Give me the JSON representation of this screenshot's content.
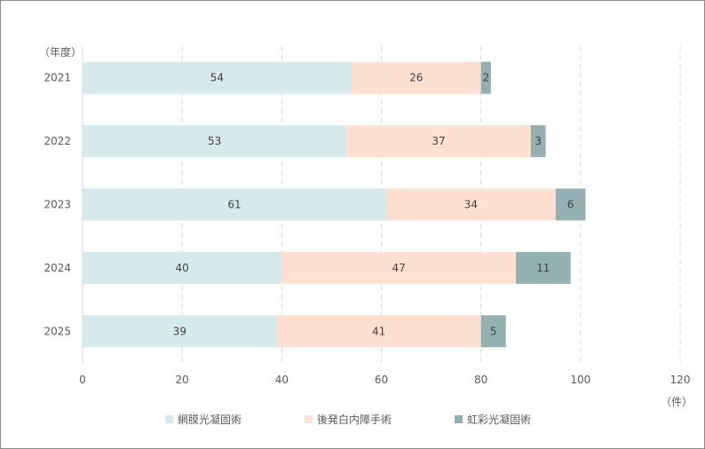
{
  "chart_data": {
    "type": "bar",
    "orientation": "horizontal",
    "stacked": true,
    "categories": [
      "2021",
      "2022",
      "2023",
      "2024",
      "2025"
    ],
    "series": [
      {
        "name": "網膜光凝固術",
        "values": [
          54,
          53,
          61,
          40,
          39
        ],
        "color": "#d6eaeb"
      },
      {
        "name": "後発白内障手術",
        "values": [
          26,
          37,
          34,
          47,
          41
        ],
        "color": "#fee0d0"
      },
      {
        "name": "虹彩光凝固術",
        "values": [
          2,
          3,
          6,
          11,
          5
        ],
        "color": "#94b0b2"
      }
    ],
    "xlim": [
      0,
      120
    ],
    "xticks": [
      0,
      20,
      40,
      60,
      80,
      100,
      120
    ],
    "ylabel": "（年度）",
    "xunit": "（件）",
    "grid": true,
    "legend": "bottom"
  }
}
